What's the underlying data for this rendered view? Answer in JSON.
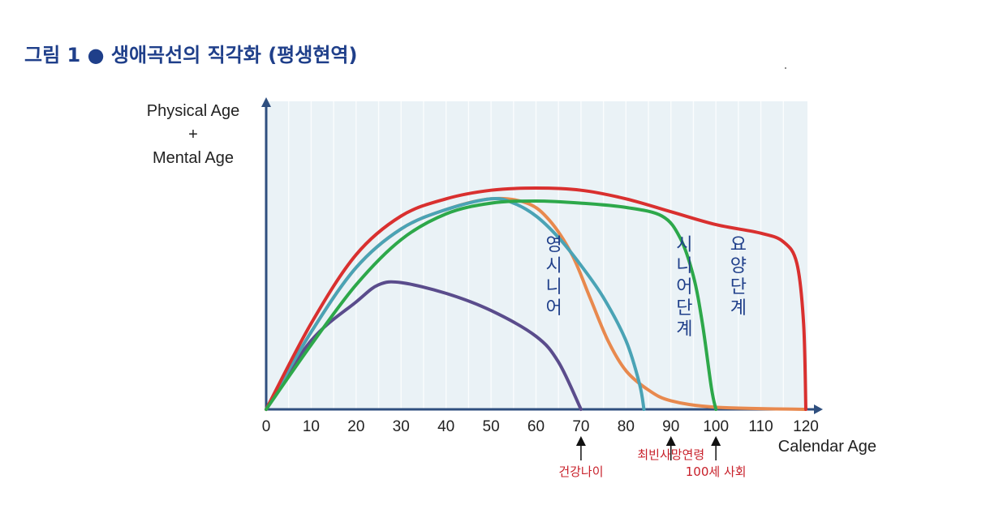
{
  "figure": {
    "title": "그림 1 ● 생애곡선의 직각화 (평생현역)"
  },
  "chart_data": {
    "type": "line",
    "xlabel": "Calendar Age",
    "ylabel_lines": [
      "Physical Age",
      "+",
      "Mental Age"
    ],
    "xlim": [
      0,
      120
    ],
    "ylim": [
      0,
      1
    ],
    "x_ticks": [
      "0",
      "10",
      "20",
      "30",
      "40",
      "50",
      "60",
      "70",
      "80",
      "90",
      "100",
      "110",
      "120"
    ],
    "grid": true,
    "series": [
      {
        "color": "#d9302f",
        "points": [
          [
            0,
            0
          ],
          [
            10,
            0.4
          ],
          [
            20,
            0.72
          ],
          [
            30,
            0.9
          ],
          [
            40,
            0.98
          ],
          [
            50,
            1.02
          ],
          [
            60,
            1.03
          ],
          [
            70,
            1.02
          ],
          [
            80,
            0.98
          ],
          [
            90,
            0.92
          ],
          [
            100,
            0.86
          ],
          [
            110,
            0.82
          ],
          [
            115,
            0.78
          ],
          [
            118,
            0.68
          ],
          [
            119.5,
            0.4
          ],
          [
            120,
            0
          ]
        ]
      },
      {
        "color": "#4aa3b5",
        "points": [
          [
            0,
            0
          ],
          [
            10,
            0.36
          ],
          [
            20,
            0.66
          ],
          [
            30,
            0.84
          ],
          [
            40,
            0.93
          ],
          [
            50,
            0.98
          ],
          [
            55,
            0.96
          ],
          [
            60,
            0.9
          ],
          [
            65,
            0.8
          ],
          [
            70,
            0.67
          ],
          [
            75,
            0.52
          ],
          [
            80,
            0.32
          ],
          [
            83,
            0.12
          ],
          [
            84,
            0
          ]
        ]
      },
      {
        "color": "#e8894e",
        "points": [
          [
            0,
            0
          ],
          [
            10,
            0.36
          ],
          [
            20,
            0.66
          ],
          [
            30,
            0.84
          ],
          [
            40,
            0.93
          ],
          [
            50,
            0.98
          ],
          [
            58,
            0.96
          ],
          [
            63,
            0.88
          ],
          [
            68,
            0.72
          ],
          [
            72,
            0.52
          ],
          [
            76,
            0.32
          ],
          [
            80,
            0.18
          ],
          [
            85,
            0.09
          ],
          [
            90,
            0.04
          ],
          [
            100,
            0.01
          ],
          [
            120,
            0
          ]
        ]
      },
      {
        "color": "#5a4c8c",
        "points": [
          [
            0,
            0
          ],
          [
            10,
            0.32
          ],
          [
            20,
            0.5
          ],
          [
            25,
            0.58
          ],
          [
            30,
            0.59
          ],
          [
            40,
            0.54
          ],
          [
            50,
            0.46
          ],
          [
            60,
            0.34
          ],
          [
            65,
            0.22
          ],
          [
            70,
            0
          ]
        ]
      },
      {
        "color": "#2da84a",
        "points": [
          [
            0,
            0
          ],
          [
            10,
            0.3
          ],
          [
            20,
            0.58
          ],
          [
            30,
            0.79
          ],
          [
            40,
            0.91
          ],
          [
            50,
            0.96
          ],
          [
            60,
            0.97
          ],
          [
            70,
            0.96
          ],
          [
            80,
            0.94
          ],
          [
            88,
            0.9
          ],
          [
            92,
            0.8
          ],
          [
            95,
            0.62
          ],
          [
            97,
            0.4
          ],
          [
            99,
            0.1
          ],
          [
            100,
            0
          ]
        ]
      }
    ],
    "stage_labels": [
      {
        "text": "영시니어",
        "x": 64,
        "y": 0.74
      },
      {
        "text": "시니어단계",
        "x": 93,
        "y": 0.74
      },
      {
        "text": "요양단계",
        "x": 105,
        "y": 0.74
      }
    ],
    "annotations": [
      {
        "text": "건강나이",
        "x": 70,
        "label_row": 2
      },
      {
        "text": "최빈사망연령",
        "x": 90,
        "label_row": 1
      },
      {
        "text": "100세 사회",
        "x": 100,
        "label_row": 2
      }
    ],
    "colors": {
      "axis": "#2f4f7f",
      "plot_background": "#eaf2f6",
      "annotation_text": "#c8202a",
      "stage_text": "#1f3f8a"
    }
  }
}
